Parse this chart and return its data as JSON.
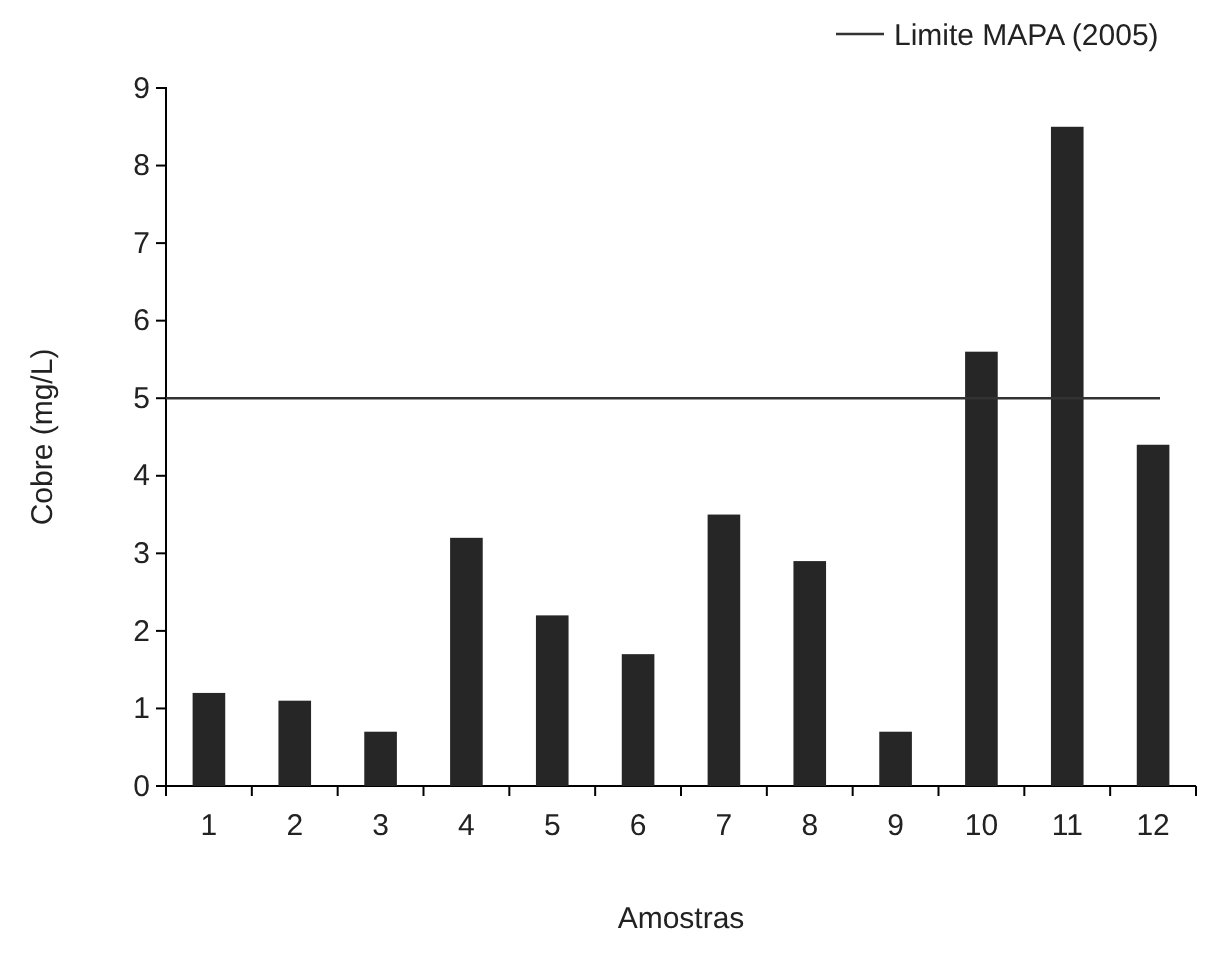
{
  "chart_data": {
    "type": "bar",
    "xlabel": "Amostras",
    "ylabel": "Cobre (mg/L)",
    "categories": [
      "1",
      "2",
      "3",
      "4",
      "5",
      "6",
      "7",
      "8",
      "9",
      "10",
      "11",
      "12"
    ],
    "values": [
      1.2,
      1.1,
      0.7,
      3.2,
      2.2,
      1.7,
      3.5,
      2.9,
      0.7,
      5.6,
      8.5,
      4.4
    ],
    "color": "#262626",
    "ylim": [
      0,
      9
    ],
    "yticks": [
      0,
      1,
      2,
      3,
      4,
      5,
      6,
      7,
      8,
      9
    ],
    "grid": false,
    "legend": "top right",
    "ref_lines": [
      {
        "axis": "y",
        "value": 5,
        "label": "Limite MAPA (2005)",
        "color": "#333333",
        "line_style": "solid"
      }
    ]
  }
}
